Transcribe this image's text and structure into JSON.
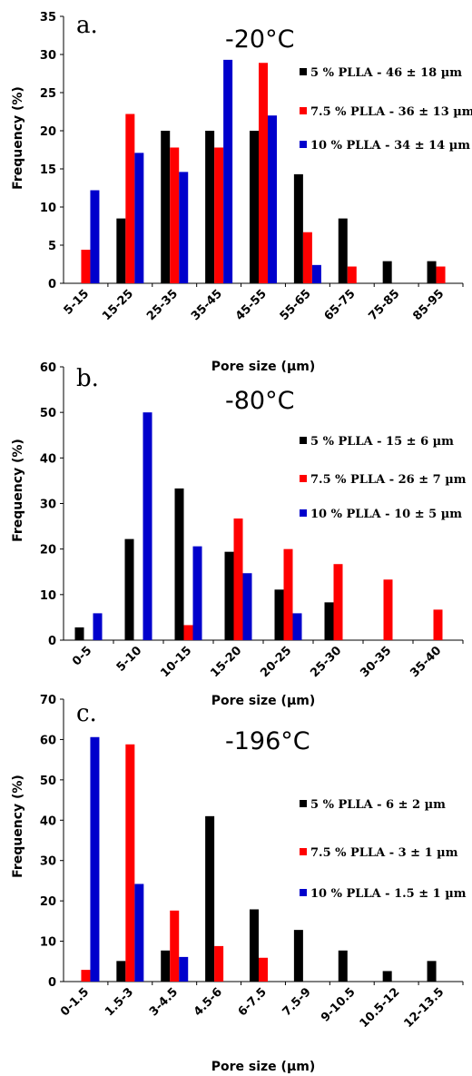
{
  "colors": {
    "s5": "#000000",
    "s75": "#ff0000",
    "s10": "#0000cc"
  },
  "chart_data": [
    {
      "type": "bar",
      "panel": "a.",
      "temperature": "-20°C",
      "xlabel": "Pore size (µm)",
      "ylabel": "Frequency (%)",
      "ylim": [
        0,
        35
      ],
      "yticks": [
        0,
        5,
        10,
        15,
        20,
        25,
        30,
        35
      ],
      "grid": false,
      "legend_position": "right",
      "categories": [
        "5-15",
        "15-25",
        "25-35",
        "35-45",
        "45-55",
        "55-65",
        "65-75",
        "75-85",
        "85-95"
      ],
      "series": [
        {
          "name": "5 % PLLA - 46 ± 18 µm",
          "color": "#000000",
          "values": [
            0,
            8.5,
            20,
            20,
            20,
            14.3,
            8.5,
            2.9,
            2.9
          ]
        },
        {
          "name": "7.5 % PLLA - 36 ± 13 µm",
          "color": "#ff0000",
          "values": [
            4.4,
            22.2,
            17.8,
            17.8,
            28.9,
            6.7,
            2.2,
            0,
            2.2
          ]
        },
        {
          "name": "10 % PLLA - 34 ± 14 µm",
          "color": "#0000cc",
          "values": [
            12.2,
            17.1,
            14.6,
            29.3,
            22,
            2.4,
            0,
            0,
            0
          ]
        }
      ]
    },
    {
      "type": "bar",
      "panel": "b.",
      "temperature": "-80°C",
      "xlabel": "Pore size (µm)",
      "ylabel": "Frequency (%)",
      "ylim": [
        0,
        60
      ],
      "yticks": [
        0,
        10,
        20,
        30,
        40,
        50,
        60
      ],
      "grid": false,
      "legend_position": "right",
      "categories": [
        "0-5",
        "5-10",
        "10-15",
        "15-20",
        "20-25",
        "25-30",
        "30-35",
        "35-40"
      ],
      "series": [
        {
          "name": "5 % PLLA - 15 ± 6 µm",
          "color": "#000000",
          "values": [
            2.8,
            22.2,
            33.3,
            19.4,
            11.1,
            8.3,
            0,
            0
          ]
        },
        {
          "name": "7.5 % PLLA - 26 ± 7 µm",
          "color": "#ff0000",
          "values": [
            0,
            0,
            3.3,
            26.7,
            20,
            16.7,
            13.3,
            6.7
          ]
        },
        {
          "name": "10 % PLLA - 10 ± 5 µm",
          "color": "#0000cc",
          "values": [
            5.9,
            50,
            20.6,
            14.7,
            5.9,
            0,
            0,
            0
          ]
        }
      ]
    },
    {
      "type": "bar",
      "panel": "c.",
      "temperature": "-196°C",
      "xlabel": "Pore size (µm)",
      "ylabel": "Frequency (%)",
      "ylim": [
        0,
        70
      ],
      "yticks": [
        0,
        10,
        20,
        30,
        40,
        50,
        60,
        70
      ],
      "grid": false,
      "legend_position": "right",
      "categories": [
        "0-1.5",
        "1.5-3",
        "3-4.5",
        "4.5-6",
        "6-7.5",
        "7.5-9",
        "9-10.5",
        "10.5-12",
        "12-13.5"
      ],
      "series": [
        {
          "name": "5 % PLLA - 6 ± 2 µm",
          "color": "#000000",
          "values": [
            0,
            5.1,
            7.7,
            41,
            17.9,
            12.8,
            7.7,
            2.6,
            5.1
          ]
        },
        {
          "name": "7.5 % PLLA - 3 ± 1 µm",
          "color": "#ff0000",
          "values": [
            2.9,
            58.8,
            17.6,
            8.8,
            5.9,
            0,
            0,
            0,
            0
          ]
        },
        {
          "name": "10 % PLLA - 1.5 ± 1 µm",
          "color": "#0000cc",
          "values": [
            60.6,
            24.2,
            6.1,
            0,
            0,
            0,
            0,
            0,
            0
          ]
        }
      ]
    }
  ]
}
